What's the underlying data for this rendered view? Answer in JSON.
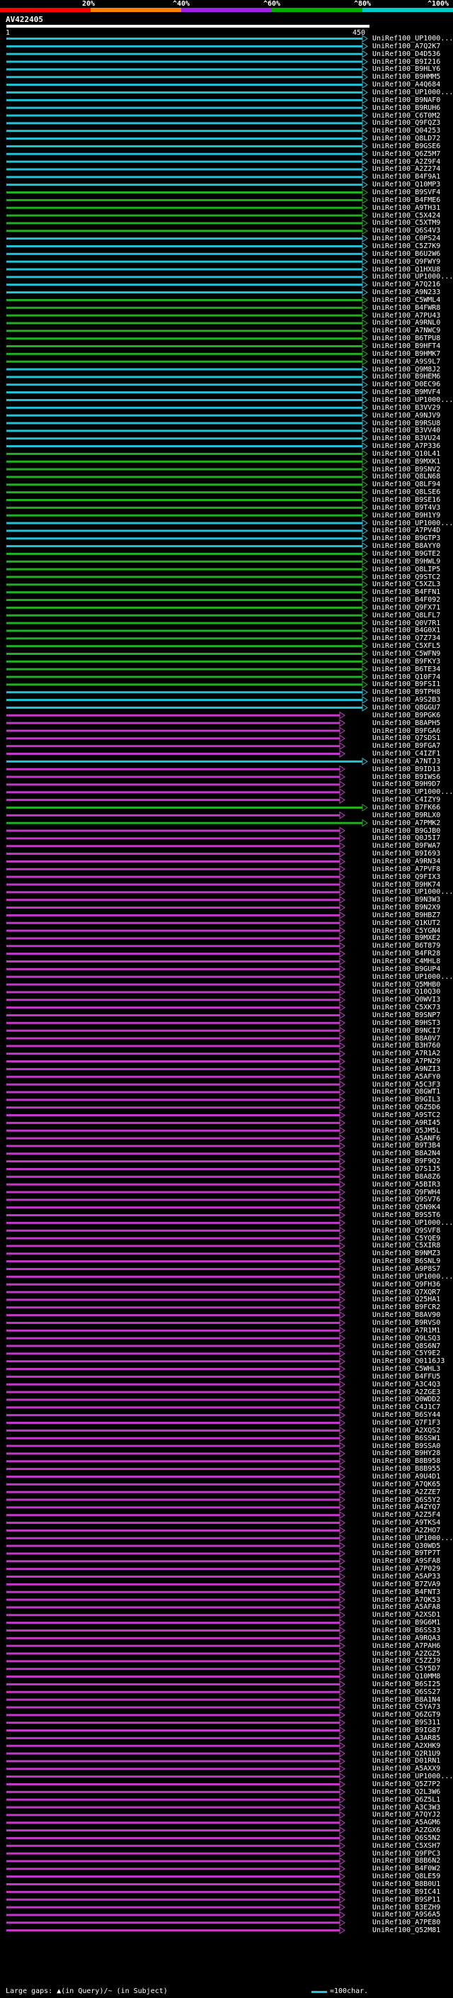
{
  "legend": {
    "bins": [
      {
        "label": "",
        "color": "#ff0000"
      },
      {
        "label": "20%",
        "color": "#ff7f00"
      },
      {
        "label": "^40%",
        "color": "#a020f0"
      },
      {
        "label": "^60%",
        "color": "#00b000"
      },
      {
        "label": "^80%",
        "color": "#00cccc"
      },
      {
        "label": "^100%",
        "color": ""
      }
    ]
  },
  "query": {
    "id": "AV422405",
    "start": "1",
    "end": "450"
  },
  "palette": {
    "cyan": "#24c2d6",
    "green": "#22b022",
    "magenta": "#c43ac8",
    "purple": "#7a2ea6"
  },
  "hits": [
    {
      "label": "UniRef100_UP1000...",
      "color": "cyan"
    },
    {
      "label": "UniRef100_A7Q2K7",
      "color": "cyan"
    },
    {
      "label": "UniRef100_D4D536",
      "color": "cyan"
    },
    {
      "label": "UniRef100_B9I216",
      "color": "cyan"
    },
    {
      "label": "UniRef100_B9HLY6",
      "color": "cyan"
    },
    {
      "label": "UniRef100_B9HMM5",
      "color": "cyan"
    },
    {
      "label": "UniRef100_A4Q684",
      "color": "cyan"
    },
    {
      "label": "UniRef100_UP1000...",
      "color": "cyan"
    },
    {
      "label": "UniRef100_B9NAF0",
      "color": "cyan"
    },
    {
      "label": "UniRef100_B9RUH6",
      "color": "cyan"
    },
    {
      "label": "UniRef100_C6T0M2",
      "color": "cyan"
    },
    {
      "label": "UniRef100_Q9FQZ3",
      "color": "cyan"
    },
    {
      "label": "UniRef100_Q04253",
      "color": "cyan"
    },
    {
      "label": "UniRef100_Q8LD72",
      "color": "cyan"
    },
    {
      "label": "UniRef100_B9GSE6",
      "color": "cyan"
    },
    {
      "label": "UniRef100_Q6Z5M7",
      "color": "cyan"
    },
    {
      "label": "UniRef100_A2Z9F4",
      "color": "cyan"
    },
    {
      "label": "UniRef100_A2Z274",
      "color": "cyan"
    },
    {
      "label": "UniRef100_B4F9A1",
      "color": "cyan"
    },
    {
      "label": "UniRef100_Q10MP3",
      "color": "cyan"
    },
    {
      "label": "UniRef100_B9SVF4",
      "color": "green"
    },
    {
      "label": "UniRef100_B4FME6",
      "color": "green"
    },
    {
      "label": "UniRef100_A9TH31",
      "color": "green"
    },
    {
      "label": "UniRef100_C5X424",
      "color": "green"
    },
    {
      "label": "UniRef100_C5XTM9",
      "color": "green"
    },
    {
      "label": "UniRef100_Q6S4V3",
      "color": "green"
    },
    {
      "label": "UniRef100_C0PS24",
      "color": "cyan"
    },
    {
      "label": "UniRef100_C5Z7K9",
      "color": "cyan"
    },
    {
      "label": "UniRef100_B6U2W6",
      "color": "cyan"
    },
    {
      "label": "UniRef100_Q9FWY9",
      "color": "cyan"
    },
    {
      "label": "UniRef100_Q1HXU8",
      "color": "cyan"
    },
    {
      "label": "UniRef100_UP1000...",
      "color": "cyan"
    },
    {
      "label": "UniRef100_A7Q216",
      "color": "cyan"
    },
    {
      "label": "UniRef100_A9N233",
      "color": "cyan"
    },
    {
      "label": "UniRef100_C5WML4",
      "color": "green"
    },
    {
      "label": "UniRef100_B4FWR8",
      "color": "green"
    },
    {
      "label": "UniRef100_A7PU43",
      "color": "green"
    },
    {
      "label": "UniRef100_A9RNL0",
      "color": "green"
    },
    {
      "label": "UniRef100_A7NWC9",
      "color": "green"
    },
    {
      "label": "UniRef100_B6TPU8",
      "color": "green"
    },
    {
      "label": "UniRef100_B9HFT4",
      "color": "green"
    },
    {
      "label": "UniRef100_B9HMK7",
      "color": "green"
    },
    {
      "label": "UniRef100_A9S9L7",
      "color": "green"
    },
    {
      "label": "UniRef100_Q9M8J2",
      "color": "cyan"
    },
    {
      "label": "UniRef100_B9HEM6",
      "color": "cyan"
    },
    {
      "label": "UniRef100_D0EC96",
      "color": "cyan"
    },
    {
      "label": "UniRef100_B9MVF4",
      "color": "cyan"
    },
    {
      "label": "UniRef100_UP1000...",
      "color": "cyan"
    },
    {
      "label": "UniRef100_B3VV29",
      "color": "cyan"
    },
    {
      "label": "UniRef100_A9NJV9",
      "color": "cyan"
    },
    {
      "label": "UniRef100_B9RSU8",
      "color": "cyan"
    },
    {
      "label": "UniRef100_B3VV40",
      "color": "cyan"
    },
    {
      "label": "UniRef100_B3VU24",
      "color": "cyan"
    },
    {
      "label": "UniRef100_A7P336",
      "color": "cyan"
    },
    {
      "label": "UniRef100_Q10L41",
      "color": "green"
    },
    {
      "label": "UniRef100_B9MXK1",
      "color": "green"
    },
    {
      "label": "UniRef100_B9SNV2",
      "color": "green"
    },
    {
      "label": "UniRef100_Q8LN68",
      "color": "green"
    },
    {
      "label": "UniRef100_Q8LF94",
      "color": "green"
    },
    {
      "label": "UniRef100_Q8LSE6",
      "color": "green"
    },
    {
      "label": "UniRef100_B9SE16",
      "color": "green"
    },
    {
      "label": "UniRef100_B9T4V3",
      "color": "green"
    },
    {
      "label": "UniRef100_B9H1Y9",
      "color": "green"
    },
    {
      "label": "UniRef100_UP1000...",
      "color": "cyan"
    },
    {
      "label": "UniRef100_A7PV4D",
      "color": "cyan"
    },
    {
      "label": "UniRef100_B9GTP3",
      "color": "cyan"
    },
    {
      "label": "UniRef100_B8AYY0",
      "color": "cyan"
    },
    {
      "label": "UniRef100_B9GTE2",
      "color": "green"
    },
    {
      "label": "UniRef100_B9HWL9",
      "color": "green"
    },
    {
      "label": "UniRef100_Q8LIP5",
      "color": "green"
    },
    {
      "label": "UniRef100_Q9STC2",
      "color": "green"
    },
    {
      "label": "UniRef100_C5XZL3",
      "color": "green"
    },
    {
      "label": "UniRef100_B4FFN1",
      "color": "green"
    },
    {
      "label": "UniRef100_B4F092",
      "color": "green"
    },
    {
      "label": "UniRef100_Q9FX71",
      "color": "green"
    },
    {
      "label": "UniRef100_Q8LFL7",
      "color": "green"
    },
    {
      "label": "UniRef100_Q0V7R1",
      "color": "green"
    },
    {
      "label": "UniRef100_B4G0X1",
      "color": "green"
    },
    {
      "label": "UniRef100_Q7Z734",
      "color": "green"
    },
    {
      "label": "UniRef100_C5XFL5",
      "color": "green"
    },
    {
      "label": "UniRef100_C5WFN9",
      "color": "green"
    },
    {
      "label": "UniRef100_B9FKY3",
      "color": "green"
    },
    {
      "label": "UniRef100_B6TE34",
      "color": "green"
    },
    {
      "label": "UniRef100_Q10F74",
      "color": "green"
    },
    {
      "label": "UniRef100_B9FSI1",
      "color": "green"
    },
    {
      "label": "UniRef100_B9TPH8",
      "color": "cyan"
    },
    {
      "label": "UniRef100_A9S2B3",
      "color": "cyan"
    },
    {
      "label": "UniRef100_Q8GGU7",
      "color": "cyan"
    },
    {
      "label": "UniRef100_B9PGK6",
      "color": "magenta"
    },
    {
      "label": "UniRef100_B8APH5",
      "color": "magenta"
    },
    {
      "label": "UniRef100_B9FGA6",
      "color": "magenta"
    },
    {
      "label": "UniRef100_Q7SDS1",
      "color": "magenta"
    },
    {
      "label": "UniRef100_B9FGA7",
      "color": "magenta"
    },
    {
      "label": "UniRef100_C4IZF1",
      "color": "magenta"
    },
    {
      "label": "UniRef100_A7NTJ3",
      "color": "cyan"
    },
    {
      "label": "UniRef100_B9ID13",
      "color": "magenta"
    },
    {
      "label": "UniRef100_B9IWS6",
      "color": "magenta"
    },
    {
      "label": "UniRef100_B9H9D7",
      "color": "magenta"
    },
    {
      "label": "UniRef100_UP1000...",
      "color": "magenta"
    },
    {
      "label": "UniRef100_C4IZY9",
      "color": "magenta"
    },
    {
      "label": "UniRef100_B7FK66",
      "color": "green"
    },
    {
      "label": "UniRef100_B9RLX0",
      "color": "magenta"
    },
    {
      "label": "UniRef100_A7PMK2",
      "color": "green"
    },
    {
      "label": "UniRef100_B9GJB0",
      "color": "magenta"
    },
    {
      "label": "UniRef100_Q0J5I7",
      "color": "magenta"
    },
    {
      "label": "UniRef100_B9FWA7",
      "color": "magenta"
    },
    {
      "label": "UniRef100_B9I693",
      "color": "magenta"
    },
    {
      "label": "UniRef100_A9RN34",
      "color": "magenta"
    },
    {
      "label": "UniRef100_A7PVF8",
      "color": "magenta"
    },
    {
      "label": "UniRef100_Q9FIX3",
      "color": "magenta"
    },
    {
      "label": "UniRef100_B9HK74",
      "color": "magenta"
    },
    {
      "label": "UniRef100_UP1000...",
      "color": "magenta"
    },
    {
      "label": "UniRef100_B9N3W3",
      "color": "magenta"
    },
    {
      "label": "UniRef100_B9N2X9",
      "color": "magenta"
    },
    {
      "label": "UniRef100_B9HBZ7",
      "color": "magenta"
    },
    {
      "label": "UniRef100_Q1KUT2",
      "color": "magenta"
    },
    {
      "label": "UniRef100_C5YGN4",
      "color": "magenta"
    },
    {
      "label": "UniRef100_B9MXE2",
      "color": "magenta"
    },
    {
      "label": "UniRef100_B6T879",
      "color": "magenta"
    },
    {
      "label": "UniRef100_B4FR28",
      "color": "magenta"
    },
    {
      "label": "UniRef100_C4MHL8",
      "color": "magenta"
    },
    {
      "label": "UniRef100_B9GUP4",
      "color": "magenta"
    },
    {
      "label": "UniRef100_UP1000...",
      "color": "magenta"
    },
    {
      "label": "UniRef100_Q5MHB0",
      "color": "magenta"
    },
    {
      "label": "UniRef100_Q10Q30",
      "color": "magenta"
    },
    {
      "label": "UniRef100_Q0WVI3",
      "color": "magenta"
    },
    {
      "label": "UniRef100_C5XK73",
      "color": "magenta"
    },
    {
      "label": "UniRef100_B9SNP7",
      "color": "magenta"
    },
    {
      "label": "UniRef100_B9HST3",
      "color": "magenta"
    },
    {
      "label": "UniRef100_B9NCI7",
      "color": "magenta"
    },
    {
      "label": "UniRef100_B8A0V7",
      "color": "magenta"
    },
    {
      "label": "UniRef100_B3H760",
      "color": "magenta"
    },
    {
      "label": "UniRef100_A7R1A2",
      "color": "magenta"
    },
    {
      "label": "UniRef100_A7PN29",
      "color": "magenta"
    },
    {
      "label": "UniRef100_A9NZI3",
      "color": "magenta"
    },
    {
      "label": "UniRef100_A5AFY0",
      "color": "magenta"
    },
    {
      "label": "UniRef100_A5C3F3",
      "color": "magenta"
    },
    {
      "label": "UniRef100_Q8GWT1",
      "color": "magenta"
    },
    {
      "label": "UniRef100_B9GIL3",
      "color": "magenta"
    },
    {
      "label": "UniRef100_Q6Z5D6",
      "color": "magenta"
    },
    {
      "label": "UniRef100_A9STC2",
      "color": "magenta"
    },
    {
      "label": "UniRef100_A9RI45",
      "color": "magenta"
    },
    {
      "label": "UniRef100_Q5JM5L",
      "color": "magenta"
    },
    {
      "label": "UniRef100_A5ANF6",
      "color": "magenta"
    },
    {
      "label": "UniRef100_B9T3B4",
      "color": "magenta"
    },
    {
      "label": "UniRef100_B8A2N4",
      "color": "magenta"
    },
    {
      "label": "UniRef100_B9F9Q2",
      "color": "magenta"
    },
    {
      "label": "UniRef100_Q7S1J5",
      "color": "magenta"
    },
    {
      "label": "UniRef100_B8A8Z6",
      "color": "magenta"
    },
    {
      "label": "UniRef100_A5BIR3",
      "color": "magenta"
    },
    {
      "label": "UniRef100_Q9FWH4",
      "color": "magenta"
    },
    {
      "label": "UniRef100_Q9SV76",
      "color": "magenta"
    },
    {
      "label": "UniRef100_Q5N9K4",
      "color": "magenta"
    },
    {
      "label": "UniRef100_B9S5T6",
      "color": "magenta"
    },
    {
      "label": "UniRef100_UP1000...",
      "color": "magenta"
    },
    {
      "label": "UniRef100_Q9SVF8",
      "color": "magenta"
    },
    {
      "label": "UniRef100_C5YQE9",
      "color": "magenta"
    },
    {
      "label": "UniRef100_C5XIR8",
      "color": "magenta"
    },
    {
      "label": "UniRef100_B9NMZ3",
      "color": "magenta"
    },
    {
      "label": "UniRef100_B6SNL9",
      "color": "magenta"
    },
    {
      "label": "UniRef100_A9P8S7",
      "color": "magenta"
    },
    {
      "label": "UniRef100_UP1000...",
      "color": "magenta"
    },
    {
      "label": "UniRef100_Q9FH36",
      "color": "magenta"
    },
    {
      "label": "UniRef100_Q7XQR7",
      "color": "magenta"
    },
    {
      "label": "UniRef100_Q25HA1",
      "color": "magenta"
    },
    {
      "label": "UniRef100_B9FCR2",
      "color": "magenta"
    },
    {
      "label": "UniRef100_B8AV90",
      "color": "magenta"
    },
    {
      "label": "UniRef100_B9RVS0",
      "color": "magenta"
    },
    {
      "label": "UniRef100_A7R1M1",
      "color": "magenta"
    },
    {
      "label": "UniRef100_Q9LSQ3",
      "color": "magenta"
    },
    {
      "label": "UniRef100_Q8S6N7",
      "color": "magenta"
    },
    {
      "label": "UniRef100_C5Y9E2",
      "color": "magenta"
    },
    {
      "label": "UniRef100_Q0116J3",
      "color": "magenta"
    },
    {
      "label": "UniRef100_C5WHL3",
      "color": "magenta"
    },
    {
      "label": "UniRef100_B4FFU5",
      "color": "magenta"
    },
    {
      "label": "UniRef100_A3C4Q3",
      "color": "magenta"
    },
    {
      "label": "UniRef100_A2ZGE3",
      "color": "magenta"
    },
    {
      "label": "UniRef100_Q0WDD2",
      "color": "magenta"
    },
    {
      "label": "UniRef100_C4J1C7",
      "color": "magenta"
    },
    {
      "label": "UniRef100_B6SY44",
      "color": "magenta"
    },
    {
      "label": "UniRef100_Q7F1F3",
      "color": "magenta"
    },
    {
      "label": "UniRef100_A2XQS2",
      "color": "magenta"
    },
    {
      "label": "UniRef100_B6SSW1",
      "color": "magenta"
    },
    {
      "label": "UniRef100_B9SSA0",
      "color": "magenta"
    },
    {
      "label": "UniRef100_B9HY28",
      "color": "magenta"
    },
    {
      "label": "UniRef100_B8B958",
      "color": "magenta"
    },
    {
      "label": "UniRef100_B8B955",
      "color": "magenta"
    },
    {
      "label": "UniRef100_A9U4D1",
      "color": "magenta"
    },
    {
      "label": "UniRef100_A7QK65",
      "color": "magenta"
    },
    {
      "label": "UniRef100_A2ZZE7",
      "color": "magenta"
    },
    {
      "label": "UniRef100_Q6S5Y2",
      "color": "magenta"
    },
    {
      "label": "UniRef100_A4ZYQ7",
      "color": "magenta"
    },
    {
      "label": "UniRef100_A2Z5F4",
      "color": "magenta"
    },
    {
      "label": "UniRef100_A9TKS4",
      "color": "magenta"
    },
    {
      "label": "UniRef100_A2ZHO7",
      "color": "magenta"
    },
    {
      "label": "UniRef100_UP1000...",
      "color": "magenta"
    },
    {
      "label": "UniRef100_Q30WD5",
      "color": "magenta"
    },
    {
      "label": "UniRef100_B9TP7T",
      "color": "magenta"
    },
    {
      "label": "UniRef100_A9SFA8",
      "color": "magenta"
    },
    {
      "label": "UniRef100_A7P029",
      "color": "magenta"
    },
    {
      "label": "UniRef100_A5AP33",
      "color": "magenta"
    },
    {
      "label": "UniRef100_B7ZVA9",
      "color": "magenta"
    },
    {
      "label": "UniRef100_B4FNT3",
      "color": "magenta"
    },
    {
      "label": "UniRef100_A7QK53",
      "color": "magenta"
    },
    {
      "label": "UniRef100_A5AFA8",
      "color": "magenta"
    },
    {
      "label": "UniRef100_A2XSD1",
      "color": "magenta"
    },
    {
      "label": "UniRef100_B9G6M1",
      "color": "magenta"
    },
    {
      "label": "UniRef100_B6SS33",
      "color": "magenta"
    },
    {
      "label": "UniRef100_A9RQA3",
      "color": "magenta"
    },
    {
      "label": "UniRef100_A7PAH6",
      "color": "magenta"
    },
    {
      "label": "UniRef100_A2ZGZ5",
      "color": "magenta"
    },
    {
      "label": "UniRef100_C5ZZJ9",
      "color": "magenta"
    },
    {
      "label": "UniRef100_C5Y5D7",
      "color": "magenta"
    },
    {
      "label": "UniRef100_Q10MM8",
      "color": "magenta"
    },
    {
      "label": "UniRef100_B6SI25",
      "color": "magenta"
    },
    {
      "label": "UniRef100_Q6SS27",
      "color": "magenta"
    },
    {
      "label": "UniRef100_B8A1N4",
      "color": "magenta"
    },
    {
      "label": "UniRef100_C5YA73",
      "color": "magenta"
    },
    {
      "label": "UniRef100_Q6ZGT9",
      "color": "magenta"
    },
    {
      "label": "UniRef100_B9S311",
      "color": "magenta"
    },
    {
      "label": "UniRef100_B9IG87",
      "color": "magenta"
    },
    {
      "label": "UniRef100_A3AR85",
      "color": "magenta"
    },
    {
      "label": "UniRef100_A2XHK9",
      "color": "magenta"
    },
    {
      "label": "UniRef100_Q2R1U9",
      "color": "magenta"
    },
    {
      "label": "UniRef100_D01RN1",
      "color": "magenta"
    },
    {
      "label": "UniRef100_A5AXX9",
      "color": "magenta"
    },
    {
      "label": "UniRef100_UP1000...",
      "color": "magenta"
    },
    {
      "label": "UniRef100_Q5Z7P2",
      "color": "magenta"
    },
    {
      "label": "UniRef100_Q2L3W6",
      "color": "magenta"
    },
    {
      "label": "UniRef100_Q6Z5L1",
      "color": "magenta"
    },
    {
      "label": "UniRef100_A3C3W3",
      "color": "magenta"
    },
    {
      "label": "UniRef100_A7QYJ2",
      "color": "magenta"
    },
    {
      "label": "UniRef100_A5AGM6",
      "color": "magenta"
    },
    {
      "label": "UniRef100_A2ZGX6",
      "color": "magenta"
    },
    {
      "label": "UniRef100_Q6S5N2",
      "color": "magenta"
    },
    {
      "label": "UniRef100_C5XSH7",
      "color": "magenta"
    },
    {
      "label": "UniRef100_Q9FPC3",
      "color": "magenta"
    },
    {
      "label": "UniRef100_B8B6N2",
      "color": "magenta"
    },
    {
      "label": "UniRef100_B4F0W2",
      "color": "magenta"
    },
    {
      "label": "UniRef100_Q8LE59",
      "color": "magenta"
    },
    {
      "label": "UniRef100_B8B0U1",
      "color": "magenta"
    },
    {
      "label": "UniRef100_B9IC41",
      "color": "magenta"
    },
    {
      "label": "UniRef100_B9SP11",
      "color": "magenta"
    },
    {
      "label": "UniRef100_B3EZH9",
      "color": "magenta"
    },
    {
      "label": "UniRef100_A9S6A5",
      "color": "magenta"
    },
    {
      "label": "UniRef100_A7PE80",
      "color": "magenta"
    },
    {
      "label": "UniRef100_Q52M81",
      "color": "magenta"
    }
  ],
  "footer": {
    "large_gaps_text": "Large gaps: ▲(in Query)/~ (in Subject)",
    "scale_text": "=100char."
  }
}
